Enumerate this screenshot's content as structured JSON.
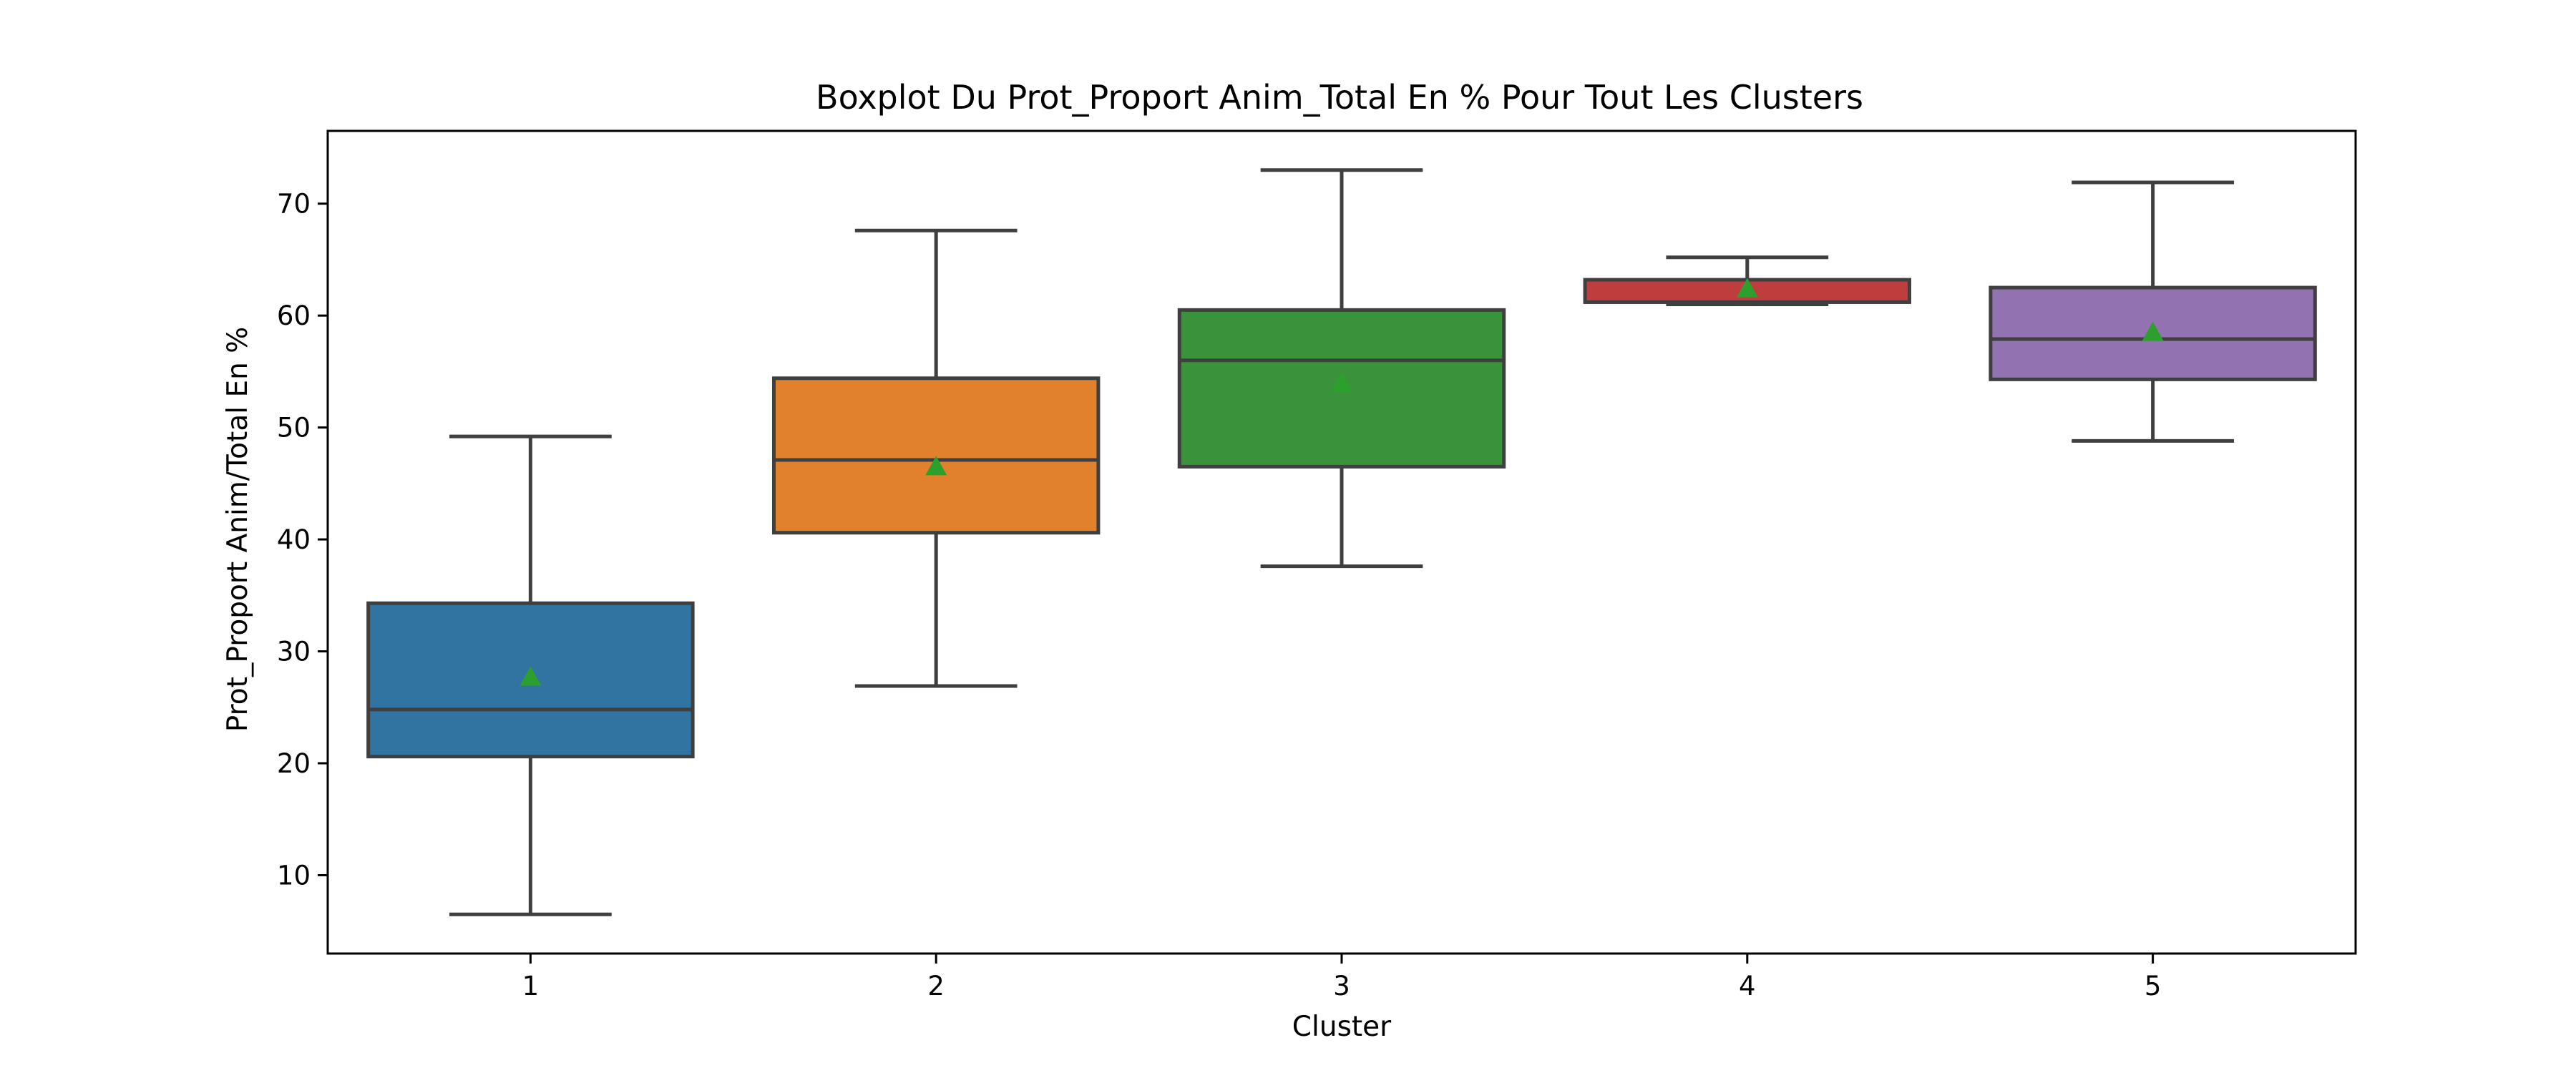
{
  "chart_data": {
    "type": "boxplot",
    "title": "Boxplot Du Prot_Proport Anim_Total En % Pour Tout Les Clusters",
    "xlabel": "Cluster",
    "ylabel": "Prot_Proport Anim/Total En %",
    "categories": [
      "1",
      "2",
      "3",
      "4",
      "5"
    ],
    "ylim": [
      3,
      76.5
    ],
    "yticks": [
      10,
      20,
      30,
      40,
      50,
      60,
      70
    ],
    "grid": false,
    "legend": "none",
    "boxes": [
      {
        "category": "1",
        "whisker_low": 6.5,
        "q1": 20.6,
        "median": 24.8,
        "q3": 34.3,
        "whisker_high": 49.2,
        "mean": 27.7,
        "color": "#3274a1"
      },
      {
        "category": "2",
        "whisker_low": 26.9,
        "q1": 40.6,
        "median": 47.1,
        "q3": 54.4,
        "whisker_high": 67.6,
        "mean": 46.5,
        "color": "#e1812c"
      },
      {
        "category": "3",
        "whisker_low": 37.6,
        "q1": 46.5,
        "median": 56.0,
        "q3": 60.5,
        "whisker_high": 73.0,
        "mean": 54.0,
        "color": "#3a923a"
      },
      {
        "category": "4",
        "whisker_low": 61.0,
        "q1": 61.2,
        "median": 61.2,
        "q3": 63.2,
        "whisker_high": 65.2,
        "mean": 62.4,
        "color": "#c03d3e"
      },
      {
        "category": "5",
        "whisker_low": 48.8,
        "q1": 54.3,
        "median": 57.9,
        "q3": 62.5,
        "whisker_high": 71.9,
        "mean": 58.5,
        "color": "#9372b2"
      }
    ],
    "line_color": "#3f3f3f",
    "mean_marker_color": "#2ca02c"
  }
}
